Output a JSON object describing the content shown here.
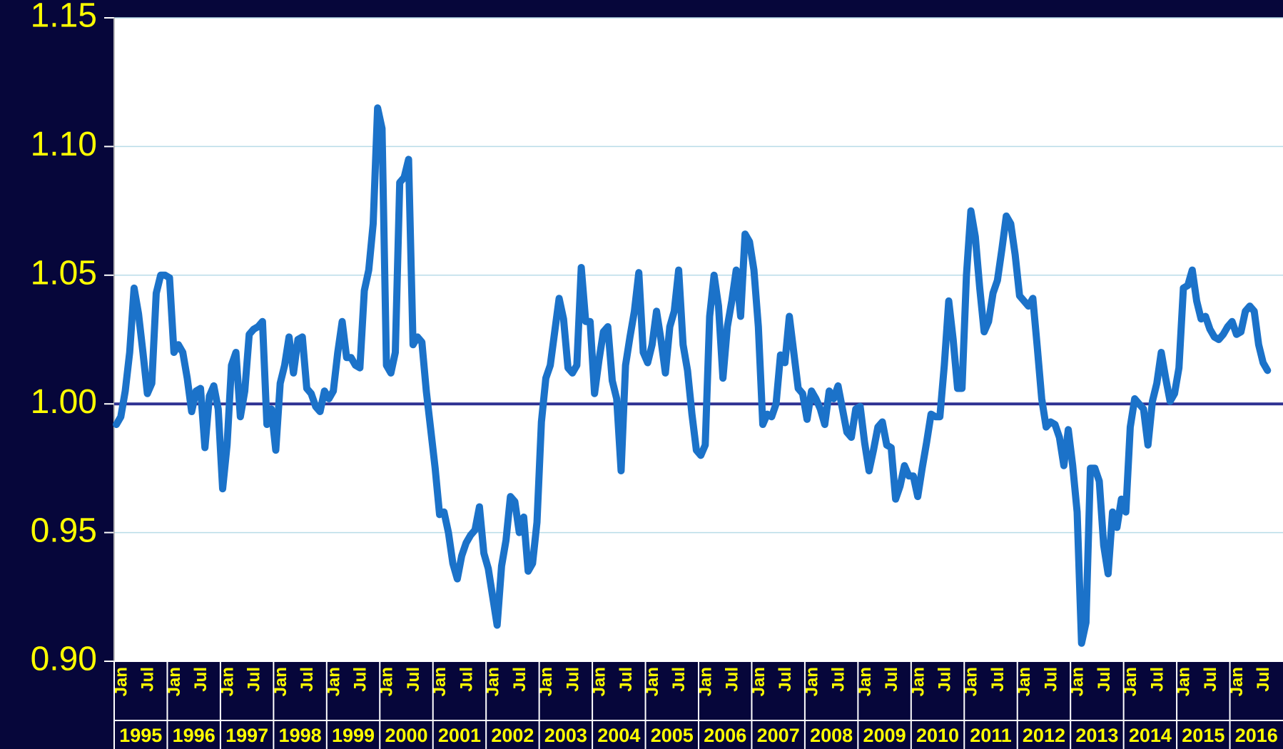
{
  "chart_data": {
    "type": "line",
    "categories": [
      "Jan",
      null,
      null,
      null,
      null,
      null,
      "Jul",
      null,
      null,
      null,
      null,
      null,
      "Jan",
      null,
      null,
      null,
      null,
      null,
      "Jul",
      null,
      null,
      null,
      null,
      null,
      "Jan",
      null,
      null,
      null,
      null,
      null,
      "Jul",
      null,
      null,
      null,
      null,
      null,
      "Jan",
      null,
      null,
      null,
      null,
      null,
      "Jul",
      null,
      null,
      null,
      null,
      null,
      "Jan",
      null,
      null,
      null,
      null,
      null,
      "Jul",
      null,
      null,
      null,
      null,
      null,
      "Jan",
      null,
      null,
      null,
      null,
      null,
      "Jul",
      null,
      null,
      null,
      null,
      null,
      "Jan",
      null,
      null,
      null,
      null,
      null,
      "Jul",
      null,
      null,
      null,
      null,
      null,
      "Jan",
      null,
      null,
      null,
      null,
      null,
      "Jul",
      null,
      null,
      null,
      null,
      null,
      "Jan",
      null,
      null,
      null,
      null,
      null,
      "Jul",
      null,
      null,
      null,
      null,
      null,
      "Jan",
      null,
      null,
      null,
      null,
      null,
      "Jul",
      null,
      null,
      null,
      null,
      null,
      "Jan",
      null,
      null,
      null,
      null,
      null,
      "Jul",
      null,
      null,
      null,
      null,
      null,
      "Jan",
      null,
      null,
      null,
      null,
      null,
      "Jul",
      null,
      null,
      null,
      null,
      null,
      "Jan",
      null,
      null,
      null,
      null,
      null,
      "Jul",
      null,
      null,
      null,
      null,
      null,
      "Jan",
      null,
      null,
      null,
      null,
      null,
      "Jul",
      null,
      null,
      null,
      null,
      null,
      "Jan",
      null,
      null,
      null,
      null,
      null,
      "Jul",
      null,
      null,
      null,
      null,
      null,
      "Jan",
      null,
      null,
      null,
      null,
      null,
      "Jul",
      null,
      null,
      null,
      null,
      null,
      "Jan",
      null,
      null,
      null,
      null,
      null,
      "Jul",
      null,
      null,
      null,
      null,
      null,
      "Jan",
      null,
      null,
      null,
      null,
      null,
      "Jul",
      null,
      null,
      null,
      null,
      null,
      "Jan",
      null,
      null,
      null,
      null,
      null,
      "Jul",
      null,
      null,
      null,
      null,
      null,
      "Jan",
      null,
      null,
      null,
      null,
      null,
      "Jul",
      null,
      null,
      null,
      null,
      null,
      "Jan",
      null,
      null,
      null,
      null,
      null,
      "Jul",
      null,
      null,
      null,
      null,
      null,
      "Jan",
      null,
      null,
      null,
      null,
      null,
      "Jul",
      null,
      null
    ],
    "year_labels": [
      "1995",
      "1996",
      "1997",
      "1998",
      "1999",
      "2000",
      "2001",
      "2002",
      "2003",
      "2004",
      "2005",
      "2006",
      "2007",
      "2008",
      "2009",
      "2010",
      "2011",
      "2012",
      "2013",
      "2014",
      "2015",
      "2016"
    ],
    "series": [
      {
        "color": "#1b72c9",
        "values": [
          0.992,
          0.995,
          1.005,
          1.02,
          1.045,
          1.035,
          1.02,
          1.004,
          1.008,
          1.043,
          1.05,
          1.05,
          1.049,
          1.02,
          1.023,
          1.02,
          1.01,
          0.997,
          1.005,
          1.006,
          0.983,
          1.003,
          1.007,
          0.998,
          0.967,
          0.984,
          1.015,
          1.02,
          0.995,
          1.005,
          1.027,
          1.029,
          1.03,
          1.032,
          0.992,
          0.998,
          0.982,
          1.008,
          1.015,
          1.026,
          1.012,
          1.025,
          1.026,
          1.006,
          1.004,
          0.999,
          0.997,
          1.005,
          1.002,
          1.005,
          1.02,
          1.032,
          1.018,
          1.018,
          1.015,
          1.014,
          1.044,
          1.052,
          1.07,
          1.115,
          1.107,
          1.015,
          1.012,
          1.02,
          1.086,
          1.088,
          1.095,
          1.023,
          1.026,
          1.024,
          1.005,
          0.99,
          0.975,
          0.957,
          0.958,
          0.95,
          0.938,
          0.932,
          0.941,
          0.946,
          0.949,
          0.951,
          0.96,
          0.942,
          0.936,
          0.925,
          0.914,
          0.937,
          0.947,
          0.964,
          0.962,
          0.95,
          0.956,
          0.935,
          0.938,
          0.954,
          0.993,
          1.01,
          1.015,
          1.028,
          1.041,
          1.033,
          1.014,
          1.012,
          1.015,
          1.053,
          1.032,
          1.032,
          1.004,
          1.017,
          1.028,
          1.03,
          1.009,
          1.002,
          0.974,
          1.015,
          1.026,
          1.036,
          1.051,
          1.02,
          1.016,
          1.023,
          1.036,
          1.025,
          1.012,
          1.03,
          1.036,
          1.052,
          1.023,
          1.013,
          0.996,
          0.982,
          0.98,
          0.984,
          1.034,
          1.05,
          1.038,
          1.01,
          1.03,
          1.04,
          1.052,
          1.034,
          1.066,
          1.063,
          1.052,
          1.03,
          0.992,
          0.996,
          0.995,
          1.0,
          1.019,
          1.016,
          1.034,
          1.02,
          1.006,
          1.004,
          0.994,
          1.005,
          1.002,
          0.998,
          0.992,
          1.005,
          1.002,
          1.007,
          0.998,
          0.989,
          0.987,
          0.998,
          0.999,
          0.985,
          0.974,
          0.982,
          0.991,
          0.993,
          0.984,
          0.983,
          0.963,
          0.968,
          0.976,
          0.972,
          0.972,
          0.964,
          0.975,
          0.985,
          0.996,
          0.995,
          0.995,
          1.015,
          1.04,
          1.025,
          1.006,
          1.006,
          1.05,
          1.075,
          1.065,
          1.045,
          1.028,
          1.032,
          1.043,
          1.048,
          1.06,
          1.073,
          1.07,
          1.058,
          1.042,
          1.04,
          1.038,
          1.041,
          1.022,
          1.002,
          0.991,
          0.993,
          0.992,
          0.987,
          0.976,
          0.99,
          0.976,
          0.958,
          0.907,
          0.915,
          0.975,
          0.975,
          0.97,
          0.945,
          0.934,
          0.958,
          0.952,
          0.963,
          0.958,
          0.991,
          1.002,
          1.0,
          0.998,
          0.984,
          1.001,
          1.008,
          1.02,
          1.01,
          1.001,
          1.004,
          1.014,
          1.045,
          1.046,
          1.052,
          1.04,
          1.033,
          1.034,
          1.029,
          1.026,
          1.025,
          1.027,
          1.03,
          1.032,
          1.027,
          1.028,
          1.036,
          1.038,
          1.036,
          1.023,
          1.016,
          1.013
        ]
      }
    ],
    "reference_line": {
      "value": 1,
      "color": "#2e3192"
    },
    "ylim": [
      0.9,
      1.15
    ],
    "yticks": [
      {
        "value": 0.9,
        "label": "0.90"
      },
      0.95,
      {
        "value": 1,
        "label": "1.00"
      },
      1.05,
      {
        "value": 1.1,
        "label": "1.10"
      },
      1.15
    ],
    "grid": true
  }
}
